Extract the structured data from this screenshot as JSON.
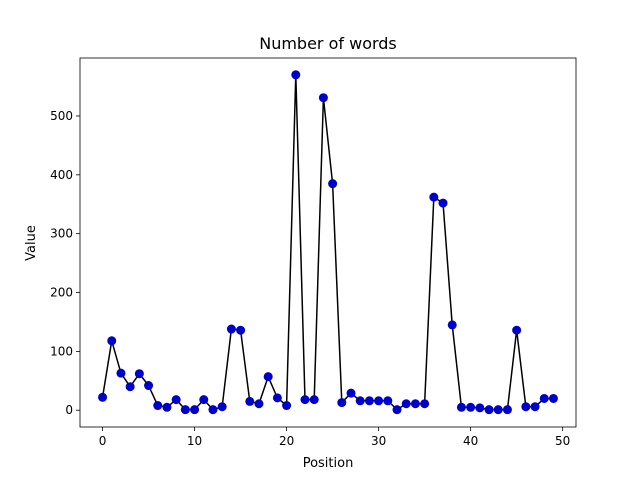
{
  "chart_data": {
    "type": "line",
    "title": "Number of words",
    "xlabel": "Position",
    "ylabel": "Value",
    "xlim": [
      -2.45,
      51.45
    ],
    "ylim": [
      -28.5,
      598.5
    ],
    "xticks": [
      0,
      10,
      20,
      30,
      40,
      50
    ],
    "yticks": [
      0,
      100,
      200,
      300,
      400,
      500
    ],
    "grid": false,
    "line_color": "#000000",
    "marker_color": "#0000cc",
    "series": [
      {
        "x": [
          0,
          1,
          2,
          3,
          4,
          5,
          6,
          7,
          8,
          9,
          10,
          11,
          12,
          13,
          14,
          15,
          16,
          17,
          18,
          19,
          20,
          21,
          22,
          23,
          24,
          25,
          26,
          27,
          28,
          29,
          30,
          31,
          32,
          33,
          34,
          35,
          36,
          37,
          38,
          39,
          40,
          41,
          42,
          43,
          44,
          45,
          46,
          47,
          48,
          49
        ],
        "values": [
          22,
          118,
          63,
          40,
          62,
          42,
          8,
          5,
          18,
          1,
          1,
          18,
          1,
          6,
          138,
          136,
          15,
          11,
          57,
          21,
          8,
          570,
          18,
          18,
          531,
          385,
          13,
          29,
          16,
          16,
          16,
          16,
          1,
          11,
          11,
          11,
          362,
          352,
          145,
          5,
          5,
          4,
          1,
          1,
          1,
          136,
          6,
          6,
          20,
          20
        ]
      }
    ]
  }
}
